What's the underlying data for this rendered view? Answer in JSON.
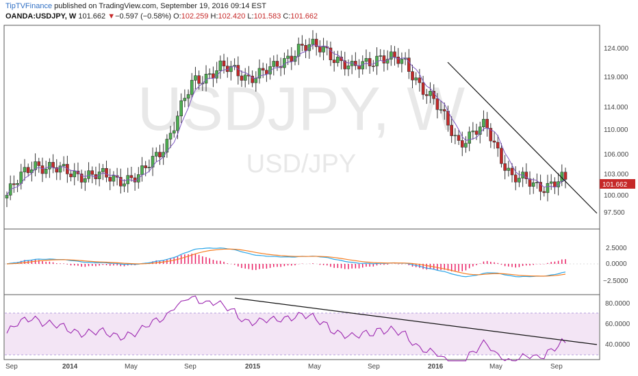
{
  "header": {
    "brand": "TipTVFinance",
    "published": " published on TradingView.com, September 19, 2016 09:14 EST",
    "symbol": "OANDA:USDJPY, W",
    "last": "101.662",
    "change_arrow": "▼",
    "change": "−0.597 (−0.58%)",
    "o_label": "O:",
    "o_value": "102.259",
    "h_label": "H:",
    "h_value": "102.420",
    "l_label": "L:",
    "l_value": "101.583",
    "c_label": "C:",
    "c_value": "101.662"
  },
  "watermark": {
    "large": "USDJPY, W",
    "small": "USD/JPY"
  },
  "colors": {
    "up": "#4caf50",
    "down": "#c62828",
    "ma_fast": "#7e57c2",
    "macd": "#29a5e8",
    "signal": "#f57c1f",
    "hist": "#e91e63",
    "rsi": "#9c27b0",
    "rsi_band": "#f3e5f5"
  },
  "chart_data": [
    {
      "type": "candlestick",
      "panel": "price",
      "price_axis": {
        "ticks": [
          124.0,
          119.0,
          114.0,
          110.0,
          106.0,
          103.0,
          100.0,
          97.5
        ],
        "tick_labels": [
          "124.000",
          "119.000",
          "114.000",
          "110.000",
          "106.000",
          "103.000",
          "100.000",
          "97.500"
        ]
      },
      "last_price_label": "101.662",
      "x_tick_labels": [
        "Sep",
        "2014",
        "May",
        "Sep",
        "2015",
        "May",
        "Sep",
        "2016",
        "May",
        "Sep"
      ],
      "approx_close_path": [
        {
          "t": "Sep 2013",
          "close": 99.0
        },
        {
          "t": "Dec 2013",
          "close": 104.5
        },
        {
          "t": "Jan 2014",
          "close": 103.0
        },
        {
          "t": "Mar 2014",
          "close": 102.5
        },
        {
          "t": "May 2014",
          "close": 101.8
        },
        {
          "t": "Aug 2014",
          "close": 102.0
        },
        {
          "t": "Oct 2014",
          "close": 108.0
        },
        {
          "t": "Nov 2014",
          "close": 118.0
        },
        {
          "t": "Dec 2014",
          "close": 120.5
        },
        {
          "t": "Feb 2015",
          "close": 119.0
        },
        {
          "t": "Apr 2015",
          "close": 120.0
        },
        {
          "t": "Jun 2015",
          "close": 124.0
        },
        {
          "t": "Aug 2015",
          "close": 123.5
        },
        {
          "t": "Sep 2015",
          "close": 120.0
        },
        {
          "t": "Nov 2015",
          "close": 122.5
        },
        {
          "t": "Dec 2015",
          "close": 121.0
        },
        {
          "t": "Feb 2016",
          "close": 115.0
        },
        {
          "t": "Apr 2016",
          "close": 108.0
        },
        {
          "t": "May 2016",
          "close": 110.5
        },
        {
          "t": "Jun 2016",
          "close": 102.0
        },
        {
          "t": "Aug 2016",
          "close": 100.5
        },
        {
          "t": "Sep 2016",
          "close": 101.662
        }
      ],
      "trendline": {
        "start": {
          "t": "Dec 2015",
          "value": 121.5
        },
        "end": {
          "t": "Sep 2016",
          "value": 101.0
        }
      }
    },
    {
      "type": "line",
      "panel": "macd",
      "y_ticks": [
        2.5,
        0.0,
        -2.5
      ],
      "y_tick_labels": [
        "2.5000",
        "0.0000",
        "−2.5000"
      ]
    },
    {
      "type": "line",
      "panel": "rsi",
      "y_ticks": [
        80,
        60,
        40
      ],
      "y_tick_labels": [
        "80.0000",
        "60.0000",
        "40.0000"
      ],
      "band": [
        30,
        70
      ]
    }
  ]
}
